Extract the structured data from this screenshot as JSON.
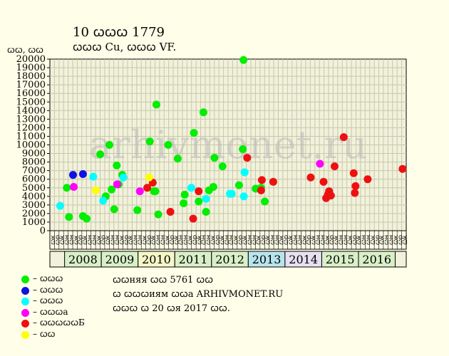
{
  "header": {
    "title": "10 ꞷꞷꞷ 1779",
    "subtitle": "ꞷꞷꞷ Cu, ꞷꞷꞷ VF."
  },
  "watermark": "arhivmonet.ru",
  "legend": [
    {
      "label": "– ꞷꞷꞷ",
      "color": "#00ee00"
    },
    {
      "label": "– ꞷꞷꞷ",
      "color": "#1010e0"
    },
    {
      "label": "– ꞷꞷꞷ",
      "color": "#00ffff"
    },
    {
      "label": "– ꞷꞷꞷa",
      "color": "#ff00ff"
    },
    {
      "label": "– ꞷꞷꞷꞷꞷБ",
      "color": "#ee1010"
    },
    {
      "label": "– ꞷꞷ",
      "color": "#ffff00"
    }
  ],
  "footer": {
    "line1": "ꞷꞷняя ꞷꞷ 5761 ꞷꞷ",
    "line2": "ꞷ ꞷꞷꞷиям ꞷꞷa ARHIVMONET.RU",
    "line3": "ꞷꞷꞷ ꞷ 20 ꞷя 2017 ꞷꞷ."
  },
  "chart_data": {
    "type": "scatter",
    "title": "10 ꞷꞷꞷ 1779",
    "subtitle": "ꞷꞷꞷ Cu, ꞷꞷꞷ VF.",
    "ylabel": "ꞷꞷ, ꞷꞷ",
    "ylim": [
      0,
      20000
    ],
    "yticks": [
      0,
      1000,
      2000,
      3000,
      4000,
      5000,
      6000,
      7000,
      8000,
      9000,
      10000,
      11000,
      12000,
      13000,
      14000,
      15000,
      16000,
      17000,
      18000,
      19000,
      20000
    ],
    "xlim": [
      2007.6,
      2017.3
    ],
    "grid": true,
    "x_tick_labels": [
      "ꞷк",
      "ꞷр",
      "ꞷк",
      "ꞷн",
      "ꞷн",
      "ꞷк",
      "ꞷр",
      "ꞷк",
      "ꞷн",
      "ꞷн",
      "ꞷк",
      "ꞷр",
      "ꞷк",
      "ꞷн",
      "ꞷн",
      "ꞷк",
      "ꞷр",
      "ꞷк",
      "ꞷн",
      "ꞷн",
      "ꞷк",
      "ꞷр",
      "ꞷк",
      "ꞷн",
      "ꞷн",
      "ꞷк",
      "ꞷр",
      "ꞷк",
      "ꞷн",
      "ꞷн",
      "ꞷк",
      "ꞷр",
      "ꞷк",
      "ꞷн",
      "ꞷн",
      "ꞷк",
      "ꞷр",
      "ꞷк",
      "ꞷн",
      "ꞷн",
      "ꞷк",
      "ꞷр",
      "ꞷк",
      "ꞷн",
      "ꞷн",
      "ꞷк",
      "ꞷр",
      "ꞷк",
      "ꞷн",
      "ꞷн",
      "ꞷк",
      "ꞷр",
      "ꞷк",
      "ꞷн",
      "ꞷн",
      "ꞷк",
      "ꞷр",
      "ꞷк",
      "ꞷн",
      "ꞷн",
      "ꞷк",
      "ꞷр",
      "ꞷк",
      "ꞷн",
      "ꞷн",
      "ꞷк",
      "ꞷр",
      "ꞷк",
      "ꞷн",
      "ꞷн",
      "ꞷк",
      "ꞷр",
      "ꞷк",
      "ꞷн",
      "ꞷн",
      "ꞷк",
      "ꞷр",
      "ꞷк"
    ],
    "years": [
      {
        "label": "2008",
        "start": 2008,
        "end": 2009,
        "color": "#d8f0c8"
      },
      {
        "label": "2009",
        "start": 2009,
        "end": 2010,
        "color": "#d8f0c8"
      },
      {
        "label": "2010",
        "start": 2010,
        "end": 2011,
        "color": "#f6f6c8"
      },
      {
        "label": "2011",
        "start": 2011,
        "end": 2012,
        "color": "#d8f0c8"
      },
      {
        "label": "2012",
        "start": 2012,
        "end": 2013,
        "color": "#d8f0c8"
      },
      {
        "label": "2013",
        "start": 2013,
        "end": 2014,
        "color": "#b8e4ee"
      },
      {
        "label": "2014",
        "start": 2014,
        "end": 2015,
        "color": "#e6e0f0"
      },
      {
        "label": "2015",
        "start": 2015,
        "end": 2016,
        "color": "#d8f0c8"
      },
      {
        "label": "2016",
        "start": 2016,
        "end": 2017,
        "color": "#d8f0c8"
      }
    ],
    "series": [
      {
        "color": "#00ee00",
        "points": [
          [
            2008.06,
            5000
          ],
          [
            2008.12,
            1600
          ],
          [
            2008.5,
            1700
          ],
          [
            2008.6,
            1400
          ],
          [
            2008.97,
            8900
          ],
          [
            2009.12,
            4000
          ],
          [
            2009.22,
            10000
          ],
          [
            2009.28,
            4800
          ],
          [
            2009.35,
            2500
          ],
          [
            2009.42,
            7600
          ],
          [
            2009.47,
            5400
          ],
          [
            2009.57,
            6500
          ],
          [
            2009.98,
            2400
          ],
          [
            2010.32,
            10400
          ],
          [
            2010.43,
            4600
          ],
          [
            2010.47,
            4600
          ],
          [
            2010.5,
            14700
          ],
          [
            2010.55,
            1900
          ],
          [
            2010.82,
            10000
          ],
          [
            2011.08,
            8400
          ],
          [
            2011.24,
            3200
          ],
          [
            2011.27,
            4200
          ],
          [
            2011.52,
            11400
          ],
          [
            2011.65,
            3400
          ],
          [
            2011.78,
            13800
          ],
          [
            2011.85,
            2200
          ],
          [
            2011.93,
            4700
          ],
          [
            2012.05,
            5100
          ],
          [
            2012.08,
            8500
          ],
          [
            2012.3,
            7500
          ],
          [
            2012.75,
            5300
          ],
          [
            2012.85,
            9500
          ],
          [
            2012.87,
            19900
          ],
          [
            2013.2,
            4900
          ],
          [
            2013.35,
            5000
          ],
          [
            2013.45,
            3400
          ]
        ]
      },
      {
        "color": "#1010e0",
        "points": [
          [
            2008.23,
            6500
          ],
          [
            2008.5,
            6600
          ]
        ]
      },
      {
        "color": "#00ffff",
        "points": [
          [
            2007.88,
            2900
          ],
          [
            2008.78,
            6300
          ],
          [
            2009.05,
            3500
          ],
          [
            2009.6,
            6200
          ],
          [
            2011.45,
            5000
          ],
          [
            2011.85,
            3700
          ],
          [
            2012.5,
            4300
          ],
          [
            2012.55,
            4300
          ],
          [
            2012.88,
            4000
          ],
          [
            2012.9,
            6800
          ]
        ]
      },
      {
        "color": "#ff00ff",
        "points": [
          [
            2008.25,
            5100
          ],
          [
            2009.43,
            5400
          ],
          [
            2010.05,
            4600
          ],
          [
            2014.95,
            7800
          ]
        ]
      },
      {
        "color": "#ee1010",
        "points": [
          [
            2010.25,
            5000
          ],
          [
            2010.4,
            5600
          ],
          [
            2010.88,
            2200
          ],
          [
            2011.5,
            1400
          ],
          [
            2011.65,
            4600
          ],
          [
            2012.97,
            8500
          ],
          [
            2013.35,
            4700
          ],
          [
            2013.37,
            5900
          ],
          [
            2013.68,
            5700
          ],
          [
            2014.7,
            6200
          ],
          [
            2015.05,
            5700
          ],
          [
            2015.12,
            3800
          ],
          [
            2015.17,
            4200
          ],
          [
            2015.2,
            4600
          ],
          [
            2015.25,
            4100
          ],
          [
            2015.35,
            7500
          ],
          [
            2015.6,
            10900
          ],
          [
            2015.87,
            6700
          ],
          [
            2015.9,
            4400
          ],
          [
            2015.92,
            5200
          ],
          [
            2016.25,
            6000
          ],
          [
            2017.2,
            7200
          ]
        ]
      },
      {
        "color": "#ffff00",
        "points": [
          [
            2008.85,
            4700
          ],
          [
            2010.3,
            6200
          ]
        ]
      }
    ]
  }
}
